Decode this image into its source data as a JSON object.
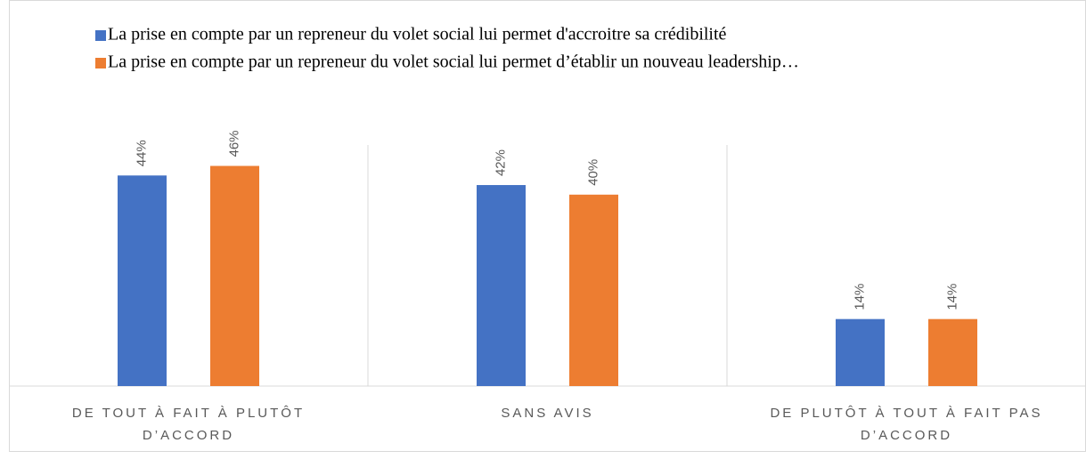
{
  "chart_data": {
    "type": "bar",
    "categories": [
      "DE TOUT À FAIT À PLUTÔT D’ACCORD",
      "SANS AVIS",
      "DE PLUTÔT À TOUT À FAIT PAS D’ACCORD"
    ],
    "series": [
      {
        "name": "La prise en compte par un repreneur du volet social lui permet d'accroitre sa crédibilité",
        "color": "#4472c4",
        "values": [
          44,
          42,
          14
        ],
        "value_labels": [
          "44%",
          "42%",
          "14%"
        ]
      },
      {
        "name": "La prise en compte par un repreneur du volet social lui permet d’établir un nouveau leadership…",
        "color": "#ed7d31",
        "values": [
          46,
          40,
          14
        ],
        "value_labels": [
          "46%",
          "40%",
          "14%"
        ]
      }
    ],
    "ylim": [
      0,
      50
    ]
  }
}
